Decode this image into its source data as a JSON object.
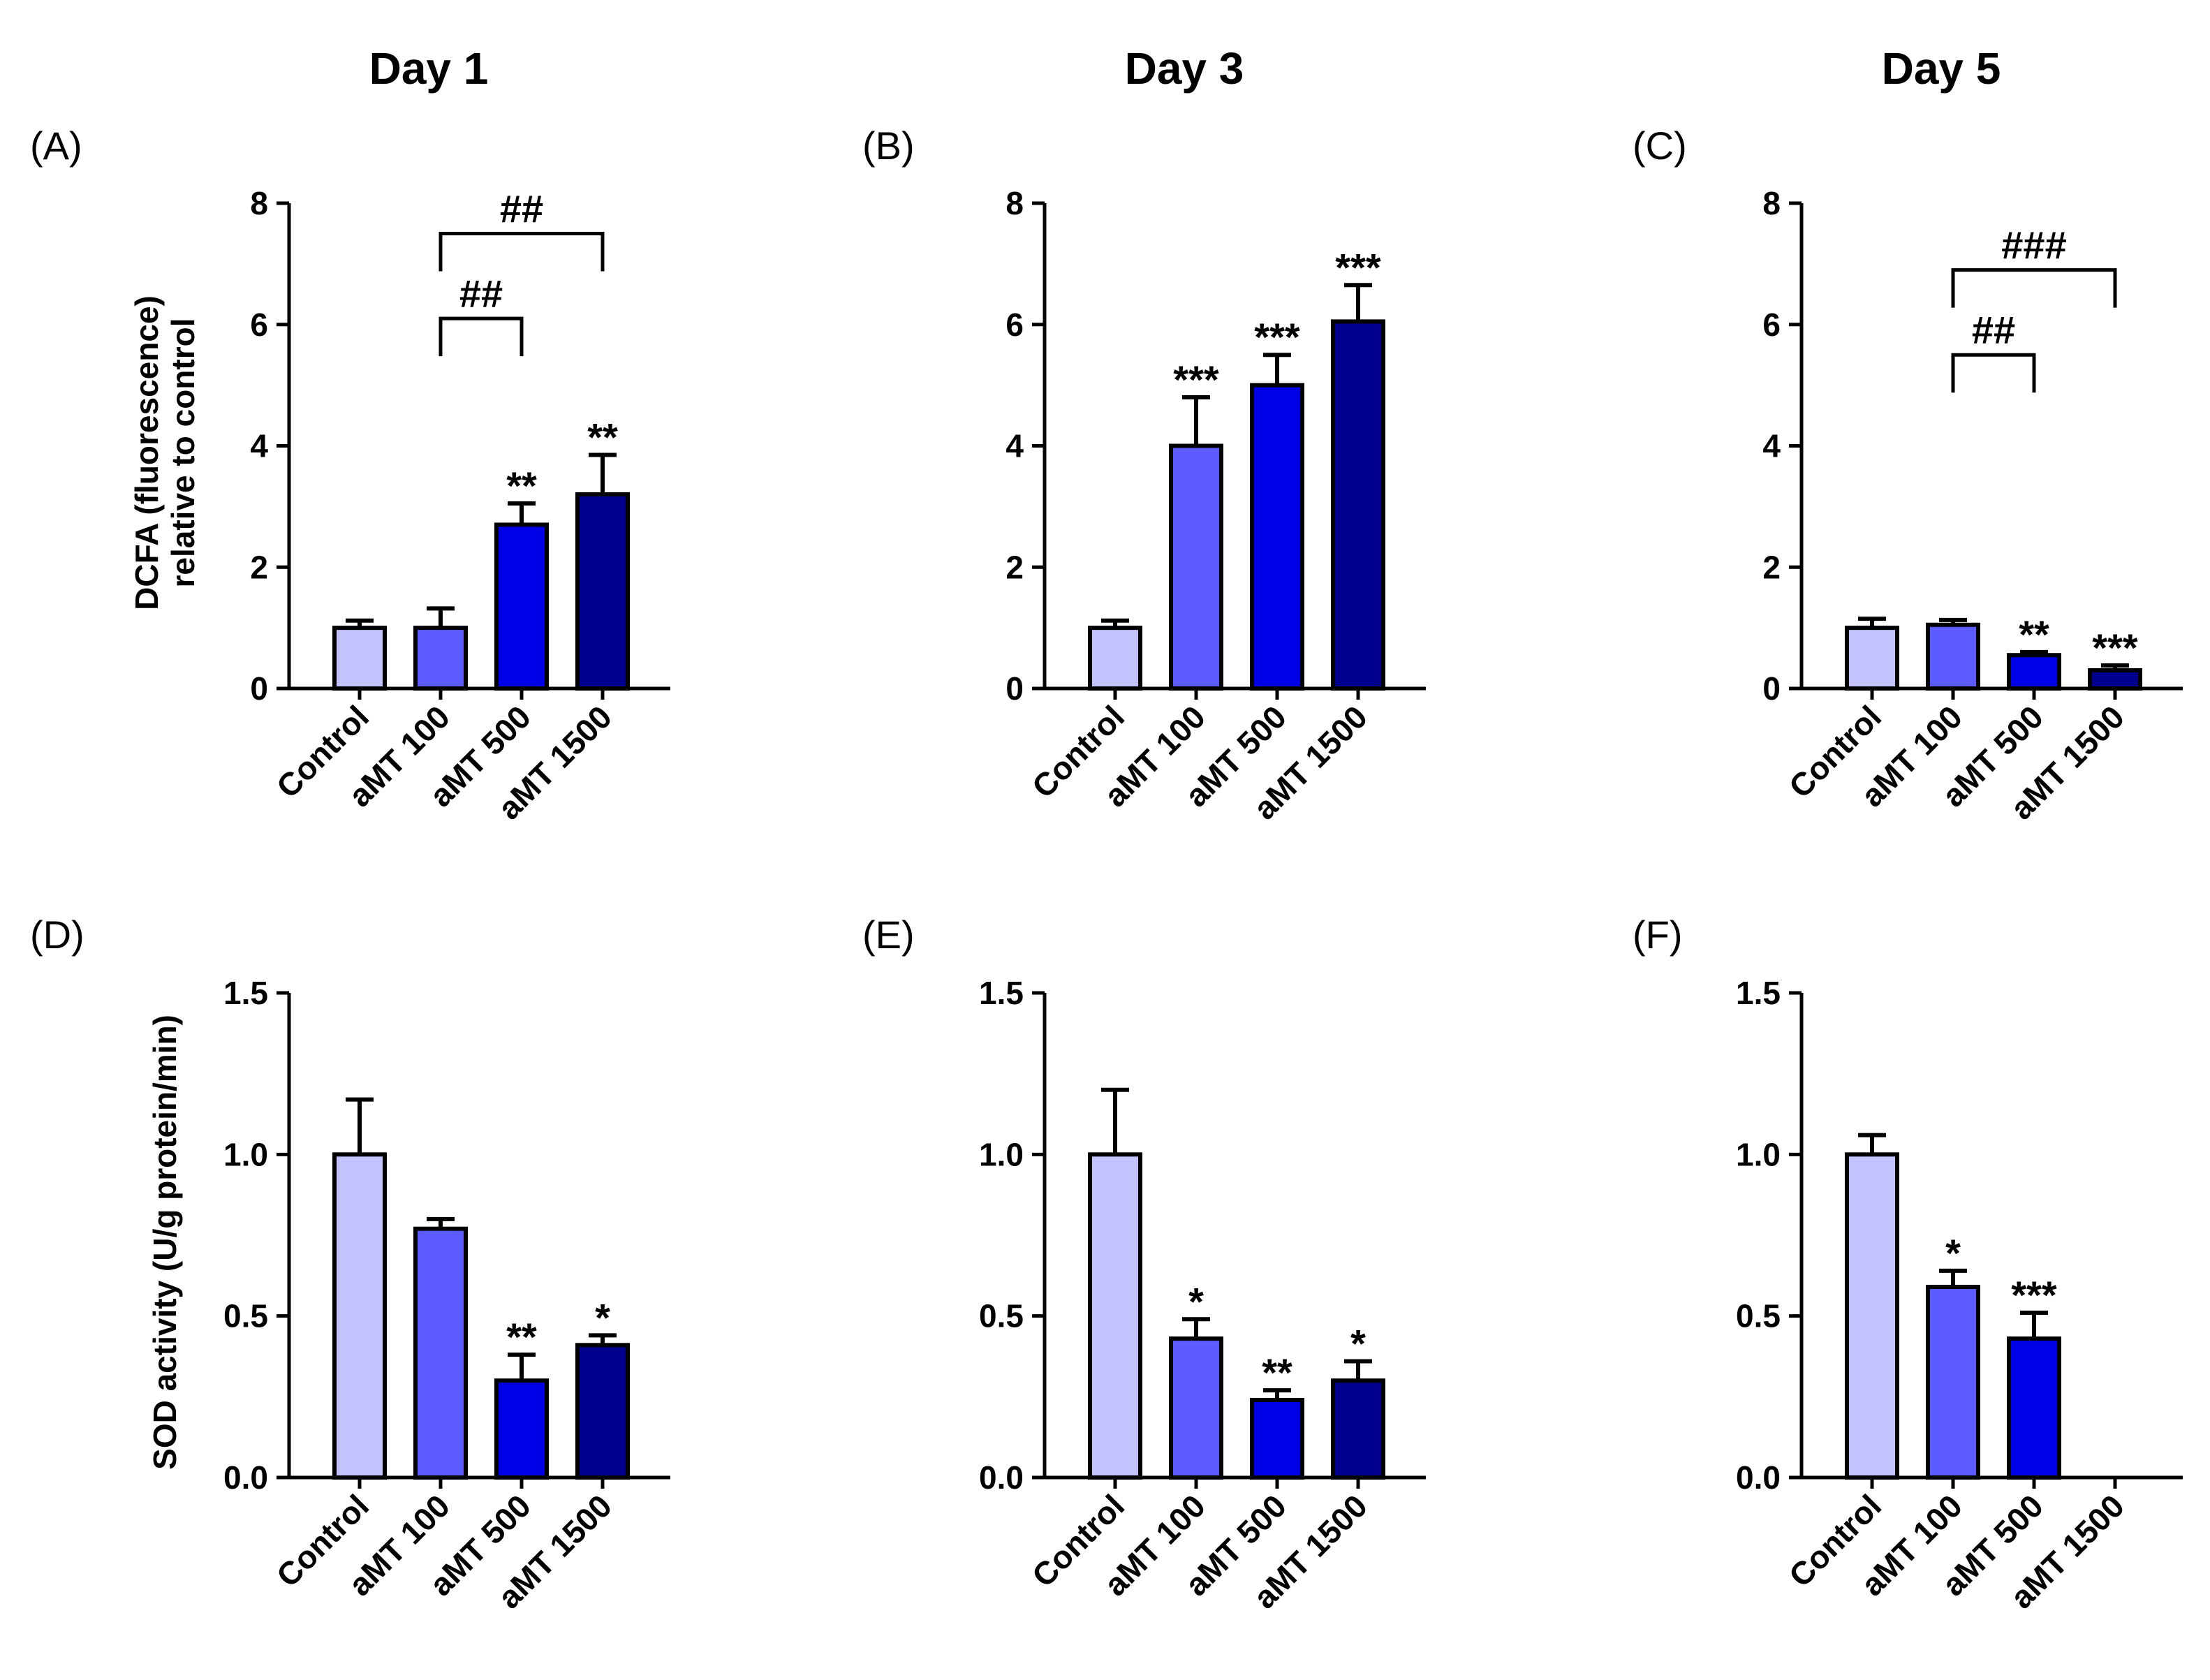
{
  "columns": [
    {
      "title": "Day 1"
    },
    {
      "title": "Day 3"
    },
    {
      "title": "Day 5"
    }
  ],
  "chart_data": [
    {
      "panel": "(A)",
      "type": "bar",
      "column": "Day 1",
      "row": 0,
      "categories": [
        "Control",
        "aMT 100",
        "aMT 500",
        "aMT 1500"
      ],
      "values": [
        1.0,
        1.0,
        2.7,
        3.2
      ],
      "errors": [
        0.12,
        0.32,
        0.35,
        0.65
      ],
      "significance": [
        "",
        "",
        "**",
        "**"
      ],
      "ylabel": [
        "DCFA (fluorescence)",
        "relative to control"
      ],
      "ylim": [
        0,
        8
      ],
      "yticks": [
        "0",
        "2",
        "4",
        "6",
        "8"
      ],
      "ytick_values": [
        0,
        2,
        4,
        6,
        8
      ],
      "brackets": [
        {
          "from": 1,
          "to": 2,
          "label": "##",
          "level": 6.1
        },
        {
          "from": 1,
          "to": 3,
          "label": "##",
          "level": 7.5
        }
      ]
    },
    {
      "panel": "(B)",
      "type": "bar",
      "column": "Day 3",
      "row": 0,
      "categories": [
        "Control",
        "aMT 100",
        "aMT 500",
        "aMT 1500"
      ],
      "values": [
        1.0,
        4.0,
        5.0,
        6.05
      ],
      "errors": [
        0.12,
        0.8,
        0.5,
        0.6
      ],
      "significance": [
        "",
        "***",
        "***",
        "***"
      ],
      "ylabel": [],
      "ylim": [
        0,
        8
      ],
      "yticks": [
        "0",
        "2",
        "4",
        "6",
        "8"
      ],
      "ytick_values": [
        0,
        2,
        4,
        6,
        8
      ],
      "brackets": []
    },
    {
      "panel": "(C)",
      "type": "bar",
      "column": "Day 5",
      "row": 0,
      "categories": [
        "Control",
        "aMT 100",
        "aMT 500",
        "aMT 1500"
      ],
      "values": [
        1.0,
        1.05,
        0.55,
        0.3
      ],
      "errors": [
        0.15,
        0.08,
        0.05,
        0.08
      ],
      "significance": [
        "",
        "",
        "**",
        "***"
      ],
      "ylabel": [],
      "ylim": [
        0,
        8
      ],
      "yticks": [
        "0",
        "2",
        "4",
        "6",
        "8"
      ],
      "ytick_values": [
        0,
        2,
        4,
        6,
        8
      ],
      "brackets": [
        {
          "from": 1,
          "to": 2,
          "label": "##",
          "level": 5.5
        },
        {
          "from": 1,
          "to": 3,
          "label": "###",
          "level": 6.9
        }
      ]
    },
    {
      "panel": "(D)",
      "type": "bar",
      "column": "Day 1",
      "row": 1,
      "categories": [
        "Control",
        "aMT 100",
        "aMT 500",
        "aMT 1500"
      ],
      "values": [
        1.0,
        0.77,
        0.3,
        0.41
      ],
      "errors": [
        0.17,
        0.03,
        0.08,
        0.03
      ],
      "significance": [
        "",
        "",
        "**",
        "*"
      ],
      "ylabel": [
        "SOD activity (U/g protein/min)"
      ],
      "ylim": [
        0,
        1.5
      ],
      "yticks": [
        "0.0",
        "0.5",
        "1.0",
        "1.5"
      ],
      "ytick_values": [
        0,
        0.5,
        1.0,
        1.5
      ],
      "brackets": []
    },
    {
      "panel": "(E)",
      "type": "bar",
      "column": "Day 3",
      "row": 1,
      "categories": [
        "Control",
        "aMT 100",
        "aMT 500",
        "aMT 1500"
      ],
      "values": [
        1.0,
        0.43,
        0.24,
        0.3
      ],
      "errors": [
        0.2,
        0.06,
        0.03,
        0.06
      ],
      "significance": [
        "",
        "*",
        "**",
        "*"
      ],
      "ylabel": [],
      "ylim": [
        0,
        1.5
      ],
      "yticks": [
        "0.0",
        "0.5",
        "1.0",
        "1.5"
      ],
      "ytick_values": [
        0,
        0.5,
        1.0,
        1.5
      ],
      "brackets": []
    },
    {
      "panel": "(F)",
      "type": "bar",
      "column": "Day 5",
      "row": 1,
      "categories": [
        "Control",
        "aMT 100",
        "aMT 500",
        "aMT 1500"
      ],
      "values": [
        1.0,
        0.59,
        0.43,
        null
      ],
      "errors": [
        0.06,
        0.05,
        0.08,
        null
      ],
      "significance": [
        "",
        "*",
        "***",
        ""
      ],
      "ylabel": [],
      "ylim": [
        0,
        1.5
      ],
      "yticks": [
        "0.0",
        "0.5",
        "1.0",
        "1.5"
      ],
      "ytick_values": [
        0,
        0.5,
        1.0,
        1.5
      ],
      "brackets": []
    }
  ],
  "colors": [
    "#c3c3ff",
    "#5b5bff",
    "#0000e6",
    "#00008c"
  ]
}
